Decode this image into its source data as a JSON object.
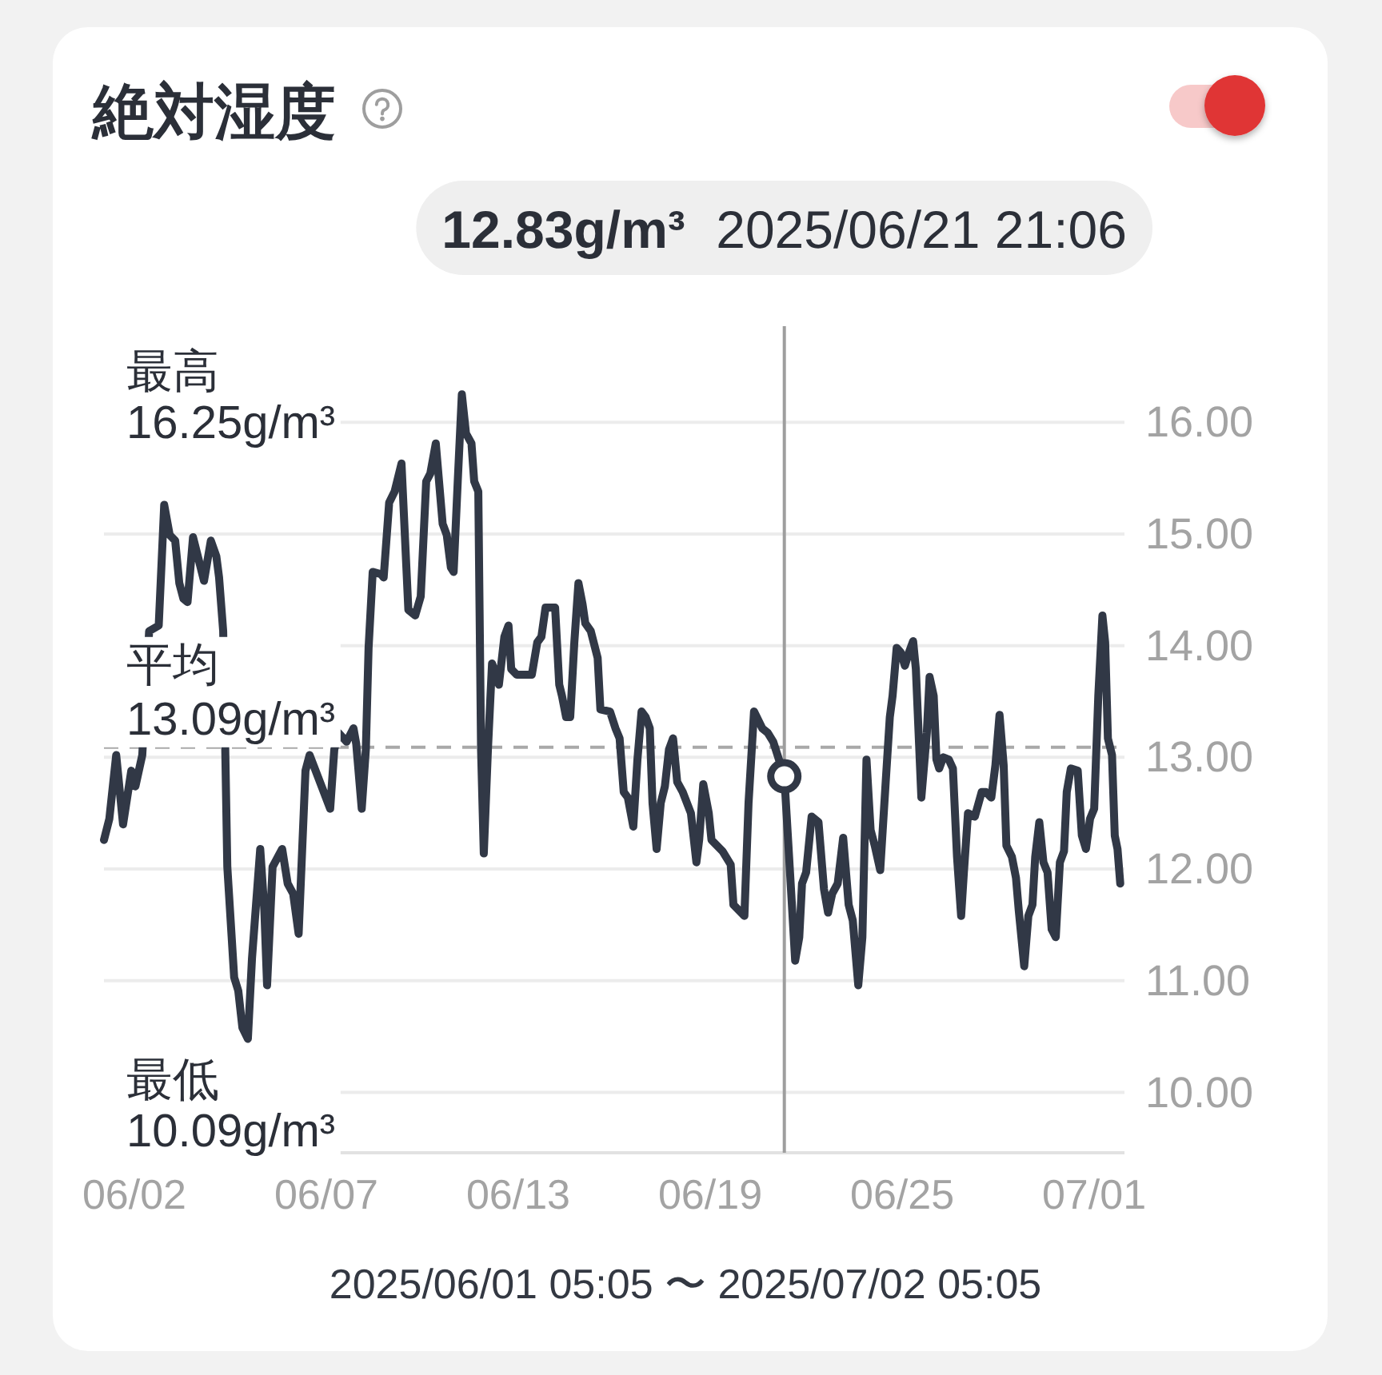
{
  "chart_data": {
    "type": "line",
    "title": "絶対湿度",
    "xlabel": "2025/06/01 05:05 〜 2025/07/02 05:05",
    "x": [
      "2025-06-01T05:05",
      "2025-06-01T09:00",
      "2025-06-01T14:00",
      "2025-06-01T19:00",
      "2025-06-02T01:00",
      "2025-06-02T04:00",
      "2025-06-02T09:00",
      "2025-06-02T14:00",
      "2025-06-02T21:00",
      "2025-06-03T01:00",
      "2025-06-03T05:00",
      "2025-06-03T09:00",
      "2025-06-03T12:00",
      "2025-06-03T15:00",
      "2025-06-03T18:00",
      "2025-06-03T22:00",
      "2025-06-04T06:00",
      "2025-06-04T11:00",
      "2025-06-04T15:00",
      "2025-06-04T17:00",
      "2025-06-04T20:00",
      "2025-06-04T23:00",
      "2025-06-05T04:00",
      "2025-06-05T07:00",
      "2025-06-05T10:00",
      "2025-06-05T14:00",
      "2025-06-05T17:00",
      "2025-06-05T23:00",
      "2025-06-06T02:00",
      "2025-06-06T04:00",
      "2025-06-06T08:00",
      "2025-06-06T15:00",
      "2025-06-06T19:00",
      "2025-06-06T23:00",
      "2025-06-07T03:00",
      "2025-06-07T08:00",
      "2025-06-07T11:00",
      "2025-06-08T02:00",
      "2025-06-08T05:00",
      "2025-06-08T08:00",
      "2025-06-08T14:00",
      "2025-06-08T19:00",
      "2025-06-08T21:00",
      "2025-06-09T01:00",
      "2025-06-09T04:00",
      "2025-06-09T06:00",
      "2025-06-09T09:00",
      "2025-06-09T15:00",
      "2025-06-09T17:00",
      "2025-06-09T21:00",
      "2025-06-10T01:00",
      "2025-06-10T06:00",
      "2025-06-10T11:00",
      "2025-06-10T16:00",
      "2025-06-10T20:00",
      "2025-06-11T00:00",
      "2025-06-11T03:00",
      "2025-06-11T07:00",
      "2025-06-11T12:00",
      "2025-06-11T15:00",
      "2025-06-11T18:00",
      "2025-06-11T20:00",
      "2025-06-11T23:00",
      "2025-06-12T02:00",
      "2025-06-12T05:00",
      "2025-06-12T09:00",
      "2025-06-12T11:00",
      "2025-06-12T14:00",
      "2025-06-12T16:00",
      "2025-06-12T18:00",
      "2025-06-12T21:00",
      "2025-06-13T00:00",
      "2025-06-13T03:00",
      "2025-06-13T05:00",
      "2025-06-13T09:00",
      "2025-06-13T12:00",
      "2025-06-13T14:00",
      "2025-06-13T18:00",
      "2025-06-14T05:00",
      "2025-06-14T09:00",
      "2025-06-14T12:00",
      "2025-06-14T15:00",
      "2025-06-14T22:00",
      "2025-06-15T01:00",
      "2025-06-15T03:00",
      "2025-06-15T06:00",
      "2025-06-15T09:00",
      "2025-06-15T12:00",
      "2025-06-15T15:00",
      "2025-06-15T18:00",
      "2025-06-15T20:00",
      "2025-06-16T00:00",
      "2025-06-16T05:00",
      "2025-06-16T07:00",
      "2025-06-16T14:00",
      "2025-06-16T18:00",
      "2025-06-16T21:00",
      "2025-06-17T00:00",
      "2025-06-17T03:00",
      "2025-06-17T07:00",
      "2025-06-17T10:00",
      "2025-06-17T13:00",
      "2025-06-17T16:00",
      "2025-06-17T19:00",
      "2025-06-17T21:00",
      "2025-06-18T00:00",
      "2025-06-18T03:00",
      "2025-06-18T06:00",
      "2025-06-18T09:00",
      "2025-06-18T12:00",
      "2025-06-18T15:00",
      "2025-06-18T19:00",
      "2025-06-19T01:00",
      "2025-06-19T05:00",
      "2025-06-19T07:00",
      "2025-06-19T10:00",
      "2025-06-19T14:00",
      "2025-06-19T16:00",
      "2025-06-20T00:00",
      "2025-06-20T06:00",
      "2025-06-20T08:00",
      "2025-06-20T16:00",
      "2025-06-20T19:00",
      "2025-06-20T23:00",
      "2025-06-21T05:00",
      "2025-06-21T09:00",
      "2025-06-21T13:00",
      "2025-06-21T21:06",
      "2025-06-22T01:00",
      "2025-06-22T05:00",
      "2025-06-22T08:00",
      "2025-06-22T10:00",
      "2025-06-22T13:00",
      "2025-06-22T17:00",
      "2025-06-22T22:00",
      "2025-06-23T02:00",
      "2025-06-23T05:00",
      "2025-06-23T08:00",
      "2025-06-23T12:00",
      "2025-06-23T16:00",
      "2025-06-23T20:00",
      "2025-06-23T23:00",
      "2025-06-24T03:00",
      "2025-06-24T06:00",
      "2025-06-24T09:00",
      "2025-06-24T12:00",
      "2025-06-24T15:00",
      "2025-06-24T19:00",
      "2025-06-24T23:00",
      "2025-06-25T02:00",
      "2025-06-25T04:00",
      "2025-06-25T07:00",
      "2025-06-25T10:00",
      "2025-06-25T13:00",
      "2025-06-25T16:00",
      "2025-06-25T19:00",
      "2025-06-25T21:00",
      "2025-06-26T01:00",
      "2025-06-26T05:00",
      "2025-06-26T07:00",
      "2025-06-26T10:00",
      "2025-06-26T12:00",
      "2025-06-26T14:00",
      "2025-06-26T17:00",
      "2025-06-26T21:00",
      "2025-06-27T00:00",
      "2025-06-27T03:00",
      "2025-06-27T06:00",
      "2025-06-27T08:00",
      "2025-06-27T11:00",
      "2025-06-27T16:00",
      "2025-06-27T21:00",
      "2025-06-28T00:00",
      "2025-06-28T04:00",
      "2025-06-28T07:00",
      "2025-06-28T10:00",
      "2025-06-28T13:00",
      "2025-06-28T15:00",
      "2025-06-28T19:00",
      "2025-06-28T22:00",
      "2025-06-29T00:00",
      "2025-06-29T04:00",
      "2025-06-29T07:00",
      "2025-06-29T10:00",
      "2025-06-29T12:00",
      "2025-06-29T15:00",
      "2025-06-29T18:00",
      "2025-06-29T21:00",
      "2025-06-30T00:00",
      "2025-06-30T03:00",
      "2025-06-30T06:00",
      "2025-06-30T09:00",
      "2025-06-30T11:00",
      "2025-06-30T14:00",
      "2025-06-30T19:00",
      "2025-06-30T22:00",
      "2025-07-01T01:00",
      "2025-07-01T04:00",
      "2025-07-01T07:00",
      "2025-07-01T10:00",
      "2025-07-01T13:00",
      "2025-07-01T15:00",
      "2025-07-01T17:00",
      "2025-07-01T20:00",
      "2025-07-01T22:00",
      "2025-07-02T00:00",
      "2025-07-02T02:00"
    ],
    "series": [
      {
        "color": "#313846",
        "values": [
          12.26,
          12.45,
          13.02,
          12.4,
          12.88,
          12.74,
          13.02,
          14.13,
          14.18,
          15.26,
          14.99,
          14.94,
          14.56,
          14.42,
          14.39,
          14.97,
          14.58,
          14.94,
          14.8,
          14.61,
          14.13,
          12.02,
          11.03,
          10.91,
          10.58,
          10.48,
          11.2,
          12.18,
          11.63,
          10.96,
          12.02,
          12.18,
          11.87,
          11.78,
          11.42,
          12.88,
          13.02,
          12.54,
          13.07,
          13.22,
          13.14,
          13.26,
          13.12,
          12.54,
          13.07,
          13.98,
          14.66,
          14.64,
          14.61,
          15.28,
          15.38,
          15.63,
          14.32,
          14.27,
          14.44,
          15.47,
          15.54,
          15.81,
          15.09,
          14.99,
          14.7,
          14.66,
          15.47,
          16.25,
          15.9,
          15.81,
          15.47,
          15.38,
          13.07,
          12.14,
          13.07,
          13.84,
          13.74,
          13.65,
          14.08,
          14.18,
          13.79,
          13.74,
          13.74,
          14.03,
          14.08,
          14.34,
          14.34,
          13.65,
          13.55,
          13.36,
          13.36,
          14.03,
          14.56,
          14.37,
          14.2,
          14.13,
          13.89,
          13.43,
          13.41,
          13.26,
          13.17,
          12.69,
          12.64,
          12.38,
          12.98,
          13.41,
          13.36,
          13.26,
          12.59,
          12.18,
          12.59,
          12.74,
          13.07,
          13.17,
          12.78,
          12.69,
          12.5,
          12.06,
          12.26,
          12.76,
          12.5,
          12.26,
          12.16,
          12.04,
          11.68,
          11.58,
          12.59,
          13.41,
          13.26,
          13.22,
          13.14,
          12.83,
          12.02,
          11.18,
          11.39,
          11.87,
          11.97,
          12.47,
          12.42,
          11.82,
          11.61,
          11.78,
          11.87,
          12.28,
          11.68,
          11.54,
          10.96,
          11.39,
          12.98,
          12.35,
          12.21,
          11.99,
          12.78,
          13.36,
          13.55,
          13.98,
          13.94,
          13.82,
          13.94,
          14.04,
          13.79,
          12.64,
          13.22,
          13.72,
          13.55,
          12.98,
          12.9,
          13.0,
          12.98,
          12.9,
          12.11,
          11.58,
          11.97,
          12.5,
          12.47,
          12.69,
          12.69,
          12.64,
          12.93,
          13.38,
          12.93,
          12.21,
          12.11,
          11.92,
          11.63,
          11.13,
          11.58,
          11.68,
          12.11,
          12.42,
          12.06,
          11.97,
          11.46,
          11.39,
          12.06,
          12.16,
          12.69,
          12.9,
          12.88,
          12.3,
          12.18,
          12.45,
          12.54,
          13.55,
          14.27,
          14.03,
          13.17,
          13.02,
          12.3,
          12.18,
          11.87
        ]
      },
      {
        "type": "scatter",
        "color": "#313846",
        "marker": "circle",
        "x": [
          "2025-06-21T21:06"
        ],
        "values": [
          12.83
        ]
      }
    ],
    "xlim": [
      "2025-06-01T05:05",
      "2025-07-02T05:05"
    ],
    "xticks": [
      {
        "value": "2025-06-02T03:14",
        "label": "06/02"
      },
      {
        "value": "2025-06-07T23:11",
        "label": "06/07"
      },
      {
        "value": "2025-06-13T19:07",
        "label": "06/13"
      },
      {
        "value": "2025-06-19T15:04",
        "label": "06/19"
      },
      {
        "value": "2025-06-25T11:01",
        "label": "06/25"
      },
      {
        "value": "2025-07-01T06:57",
        "label": "07/01"
      }
    ],
    "ylim": [
      9.46,
      16.86
    ],
    "yticks": [
      {
        "value": 10,
        "label": "10.00"
      },
      {
        "value": 11,
        "label": "11.00"
      },
      {
        "value": 12,
        "label": "12.00"
      },
      {
        "value": 13,
        "label": "13.00"
      },
      {
        "value": 14,
        "label": "14.00"
      },
      {
        "value": 15,
        "label": "15.00"
      },
      {
        "value": 16,
        "label": "16.00"
      }
    ],
    "grid": "y",
    "ref_lines": [
      {
        "axis": "y",
        "value": 13.09,
        "label": "平均\n13.09g/m³",
        "color": "#a9a9a9",
        "line_style": "dashed"
      },
      {
        "axis": "x",
        "value": "2025-06-21T21:06",
        "color": "#9e9e9e",
        "line_style": "solid"
      }
    ],
    "annotations": [
      "最高\n16.25g/m³",
      "最低\n10.09g/m³",
      "12.83g/m³ 2025/06/21 21:06"
    ]
  }
}
